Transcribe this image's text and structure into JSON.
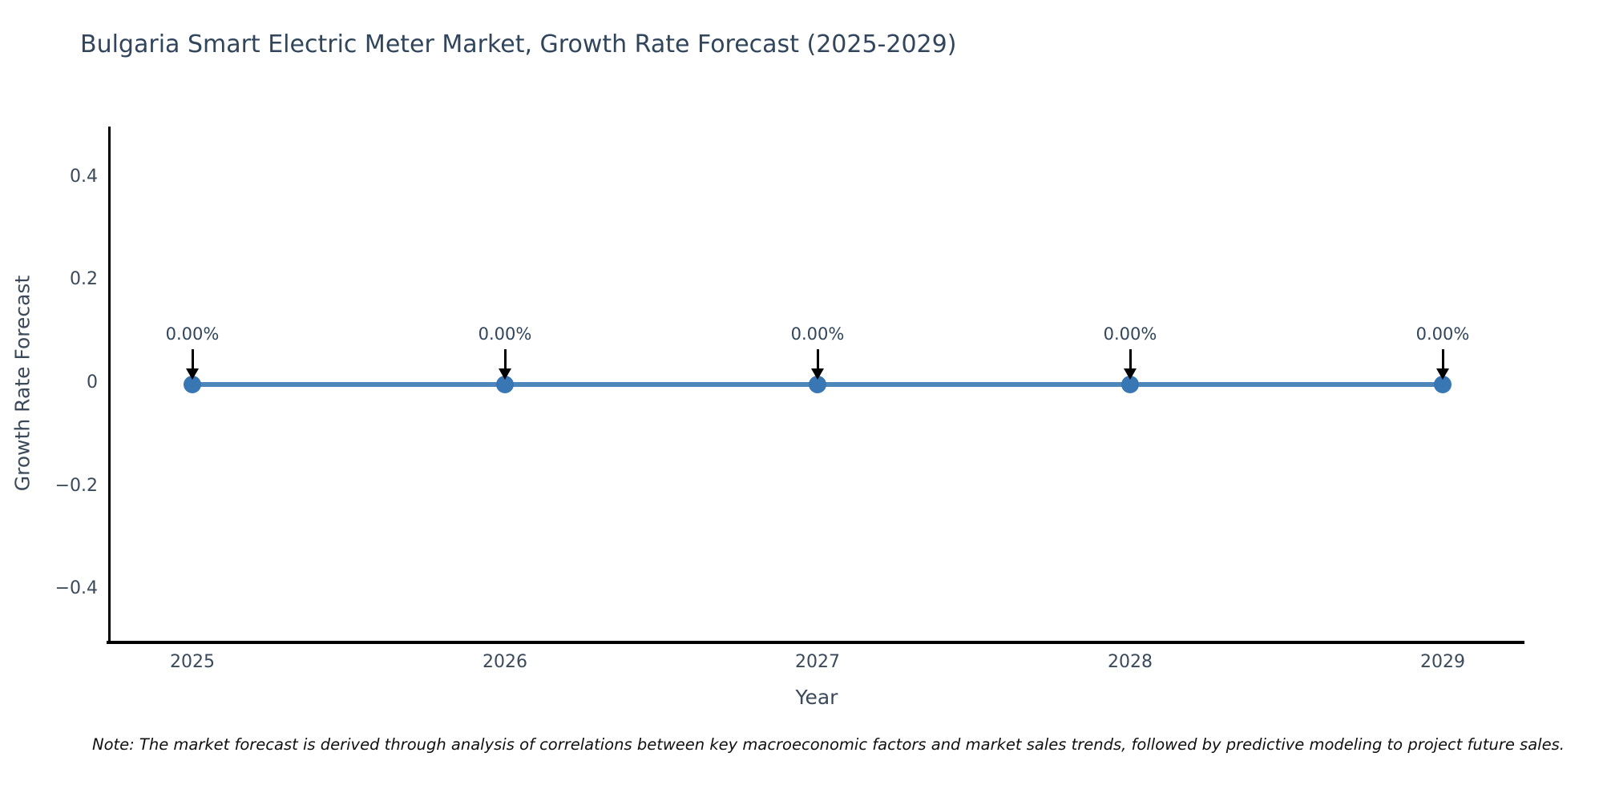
{
  "title": "Bulgaria Smart Electric Meter Market, Growth Rate Forecast (2025-2029)",
  "note": "Note: The market forecast is derived through analysis of correlations between key macroeconomic factors and market sales trends, followed by predictive modeling to project future sales.",
  "chart_data": {
    "type": "line",
    "title": "Bulgaria Smart Electric Meter Market, Growth Rate Forecast (2025-2029)",
    "xlabel": "Year",
    "ylabel": "Growth Rate Forecast",
    "x": [
      2025,
      2026,
      2027,
      2028,
      2029
    ],
    "y": [
      0,
      0,
      0,
      0,
      0
    ],
    "point_labels": [
      "0.00%",
      "0.00%",
      "0.00%",
      "0.00%",
      "0.00%"
    ],
    "xtick_labels": [
      "2025",
      "2026",
      "2027",
      "2028",
      "2029"
    ],
    "ytick_values": [
      0.4,
      0.2,
      0,
      -0.2,
      -0.4
    ],
    "ytick_labels": [
      "0.4",
      "0.2",
      "0",
      "−0.2",
      "−0.4"
    ],
    "ylim": [
      -0.5,
      0.5
    ],
    "grid": false,
    "legend": "none",
    "line_color": "#4d86ba",
    "marker_color": "#3876b4",
    "annotation_arrow_color": "#000000",
    "axis_color": "#000000",
    "text_color": "#3b4a5a"
  }
}
